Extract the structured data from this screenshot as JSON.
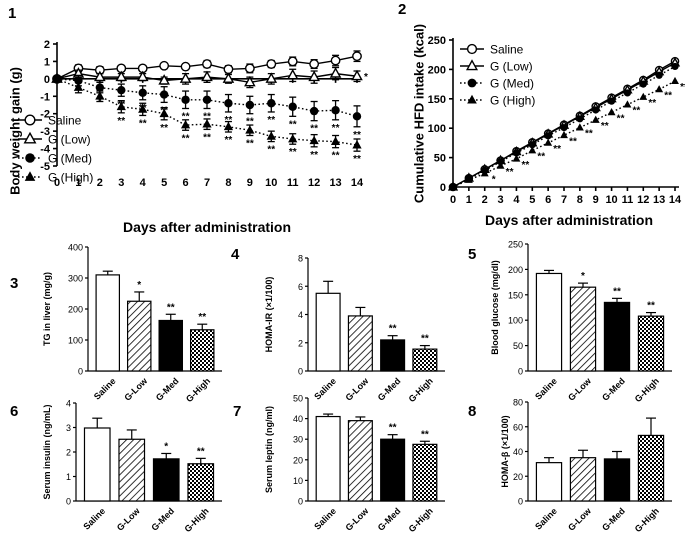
{
  "colors": {
    "ink": "#000000",
    "paper": "#ffffff"
  },
  "chart_data": [
    {
      "id": "1",
      "type": "line",
      "title": "",
      "xlabel": "Days after administration",
      "ylabel": "Body weight gain (g)",
      "xlim": [
        0,
        14
      ],
      "ylim": [
        -5,
        2
      ],
      "x": [
        0,
        1,
        2,
        3,
        4,
        5,
        6,
        7,
        8,
        9,
        10,
        11,
        12,
        13,
        14
      ],
      "xticks": [
        "0",
        "1",
        "2",
        "3",
        "4",
        "5",
        "6",
        "7",
        "8",
        "9",
        "10",
        "11",
        "12",
        "13",
        "14"
      ],
      "yticks": [
        "-5",
        "-4",
        "-3",
        "-2",
        "-1",
        "0",
        "1",
        "2"
      ],
      "legend_position": "left",
      "series": [
        {
          "name": "Saline",
          "marker": "circle-open",
          "line": "solid",
          "values": [
            0,
            0.6,
            0.5,
            0.6,
            0.6,
            0.75,
            0.7,
            0.85,
            0.55,
            0.6,
            0.85,
            1.0,
            0.85,
            1.05,
            1.3
          ],
          "errors": [
            0.1,
            0.2,
            0.2,
            0.15,
            0.15,
            0.1,
            0.15,
            0.2,
            0.2,
            0.25,
            0.2,
            0.25,
            0.25,
            0.3,
            0.3
          ],
          "stars": [
            "",
            "",
            "",
            "",
            "",
            "",
            "",
            "",
            "",
            "",
            "",
            "",
            "",
            "",
            ""
          ]
        },
        {
          "name": "G (Low)",
          "marker": "triangle-open",
          "line": "solid",
          "values": [
            0,
            0.3,
            0.1,
            0.1,
            0.1,
            -0.1,
            0,
            0.1,
            0,
            -0.2,
            0,
            0.2,
            0.1,
            0.3,
            0.15
          ],
          "errors": [
            0.1,
            0.2,
            0.2,
            0.2,
            0.2,
            0.2,
            0.3,
            0.3,
            0.25,
            0.3,
            0.3,
            0.35,
            0.35,
            0.35,
            0.3
          ],
          "stars": [
            "",
            "",
            "",
            "",
            "",
            "",
            "",
            "",
            "",
            "",
            "",
            "",
            "",
            "",
            "*"
          ]
        },
        {
          "name": "G (Med)",
          "marker": "circle-filled",
          "line": "dotted",
          "values": [
            0,
            -0.1,
            -0.5,
            -0.65,
            -0.8,
            -0.9,
            -1.2,
            -1.2,
            -1.4,
            -1.5,
            -1.4,
            -1.6,
            -1.85,
            -1.8,
            -2.15
          ],
          "errors": [
            0.1,
            0.3,
            0.3,
            0.35,
            0.4,
            0.45,
            0.5,
            0.5,
            0.5,
            0.5,
            0.5,
            0.55,
            0.55,
            0.55,
            0.6
          ],
          "stars": [
            "",
            "",
            "*",
            "**",
            "**",
            "**",
            "**",
            "**",
            "**",
            "**",
            "**",
            "**",
            "**",
            "**",
            "**"
          ]
        },
        {
          "name": "G (High)",
          "marker": "triangle-filled",
          "line": "dotted",
          "values": [
            0,
            -0.5,
            -1.0,
            -1.6,
            -1.75,
            -2.0,
            -2.65,
            -2.6,
            -2.75,
            -2.95,
            -3.3,
            -3.45,
            -3.55,
            -3.6,
            -3.8
          ],
          "errors": [
            0.1,
            0.3,
            0.3,
            0.35,
            0.35,
            0.35,
            0.3,
            0.3,
            0.3,
            0.3,
            0.3,
            0.3,
            0.35,
            0.35,
            0.35
          ],
          "stars": [
            "",
            "",
            "",
            "**",
            "**",
            "**",
            "**",
            "**",
            "**",
            "**",
            "**",
            "**",
            "**",
            "**",
            "**"
          ]
        }
      ]
    },
    {
      "id": "2",
      "type": "line",
      "title": "",
      "xlabel": "Days after administration",
      "ylabel": "Cumulative HFD intake (kcal)",
      "xlim": [
        0,
        14
      ],
      "ylim": [
        0,
        250
      ],
      "x": [
        0,
        1,
        2,
        3,
        4,
        5,
        6,
        7,
        8,
        9,
        10,
        11,
        12,
        13,
        14
      ],
      "xticks": [
        "0",
        "1",
        "2",
        "3",
        "4",
        "5",
        "6",
        "7",
        "8",
        "9",
        "10",
        "11",
        "12",
        "13",
        "14"
      ],
      "yticks": [
        "0",
        "50",
        "100",
        "150",
        "200",
        "250"
      ],
      "legend_position": "top-left",
      "series": [
        {
          "name": "Saline",
          "marker": "circle-open",
          "line": "solid",
          "values": [
            0,
            15,
            30,
            45,
            61,
            76,
            91,
            106,
            121,
            137,
            152,
            167,
            182,
            199,
            214
          ],
          "errors": [],
          "stars": [
            "",
            "",
            "",
            "",
            "",
            "",
            "",
            "",
            "",
            "",
            "",
            "",
            "",
            "",
            ""
          ]
        },
        {
          "name": "G (Low)",
          "marker": "triangle-open",
          "line": "solid",
          "values": [
            0,
            15,
            30,
            45,
            60,
            75,
            90,
            105,
            120,
            135,
            150,
            165,
            180,
            196,
            211
          ],
          "errors": [],
          "stars": [
            "",
            "",
            "",
            "",
            "",
            "",
            "",
            "",
            "",
            "",
            "",
            "",
            "",
            "",
            ""
          ]
        },
        {
          "name": "G (Med)",
          "marker": "circle-filled",
          "line": "dotted",
          "values": [
            0,
            14,
            28,
            43,
            58,
            72,
            87,
            101,
            116,
            131,
            146,
            160,
            175,
            190,
            205
          ],
          "errors": [],
          "stars": [
            "",
            "",
            "",
            "",
            "",
            "",
            "",
            "",
            "",
            "",
            "",
            "",
            "",
            "",
            ""
          ]
        },
        {
          "name": "G (High)",
          "marker": "triangle-filled",
          "line": "dotted",
          "values": [
            0,
            12,
            23,
            36,
            48,
            62,
            75,
            88,
            101,
            114,
            127,
            140,
            153,
            166,
            180
          ],
          "errors": [],
          "stars": [
            "",
            "",
            "*",
            "**",
            "**",
            "**",
            "**",
            "**",
            "**",
            "**",
            "**",
            "**",
            "**",
            "**",
            "**"
          ]
        }
      ]
    },
    {
      "id": "3",
      "type": "bar",
      "ylabel": "TG in liver (mg/g)",
      "ylim": [
        0,
        400
      ],
      "yticks": [
        "0",
        "100",
        "200",
        "300",
        "400"
      ],
      "categories": [
        "Saline",
        "G-Low",
        "G-Med",
        "G-High"
      ],
      "values": [
        310,
        225,
        163,
        133
      ],
      "errors": [
        12,
        30,
        20,
        18
      ],
      "stars": [
        "",
        "*",
        "**",
        "**"
      ]
    },
    {
      "id": "4",
      "type": "bar",
      "ylabel": "HOMA-IR (×1/100)",
      "ylim": [
        0,
        8
      ],
      "yticks": [
        "0",
        "2",
        "4",
        "6",
        "8"
      ],
      "categories": [
        "Saline",
        "G-Low",
        "G-Med",
        "G-High"
      ],
      "values": [
        5.5,
        3.9,
        2.2,
        1.55
      ],
      "errors": [
        0.85,
        0.6,
        0.3,
        0.25
      ],
      "stars": [
        "",
        "",
        "**",
        "**"
      ]
    },
    {
      "id": "5",
      "type": "bar",
      "ylabel": "Blood glucose (mg/dl)",
      "ylim": [
        0,
        250
      ],
      "yticks": [
        "0",
        "50",
        "100",
        "150",
        "200",
        "250"
      ],
      "categories": [
        "Saline",
        "G-Low",
        "G-Med",
        "G-High"
      ],
      "values": [
        192,
        165,
        135,
        108
      ],
      "errors": [
        6,
        8,
        8,
        7
      ],
      "stars": [
        "",
        "*",
        "**",
        "**"
      ]
    },
    {
      "id": "6",
      "type": "bar",
      "ylabel": "Serum insulin (ng/mL)",
      "ylim": [
        0,
        4
      ],
      "yticks": [
        "0",
        "1",
        "2",
        "3",
        "4"
      ],
      "categories": [
        "Saline",
        "G-Low",
        "G-Med",
        "G-High"
      ],
      "values": [
        2.98,
        2.52,
        1.72,
        1.52
      ],
      "errors": [
        0.4,
        0.38,
        0.22,
        0.22
      ],
      "stars": [
        "",
        "",
        "*",
        "**"
      ]
    },
    {
      "id": "7",
      "type": "bar",
      "ylabel": "Serum leptin (ng/ml)",
      "ylim": [
        0,
        50
      ],
      "yticks": [
        "0",
        "10",
        "20",
        "30",
        "40",
        "50"
      ],
      "categories": [
        "Saline",
        "G-Low",
        "G-Med",
        "G-High"
      ],
      "values": [
        41,
        39,
        30,
        27.5
      ],
      "errors": [
        1.2,
        1.8,
        2.2,
        1.5
      ],
      "stars": [
        "",
        "",
        "**",
        "**"
      ]
    },
    {
      "id": "8",
      "type": "bar",
      "ylabel": "HOMA-β (×1/100)",
      "ylim": [
        0,
        80
      ],
      "yticks": [
        "0",
        "20",
        "40",
        "60",
        "80"
      ],
      "categories": [
        "Saline",
        "G-Low",
        "G-Med",
        "G-High"
      ],
      "values": [
        31,
        35,
        34,
        53
      ],
      "errors": [
        4,
        6,
        6,
        14
      ],
      "stars": [
        "",
        "",
        "",
        ""
      ]
    }
  ]
}
